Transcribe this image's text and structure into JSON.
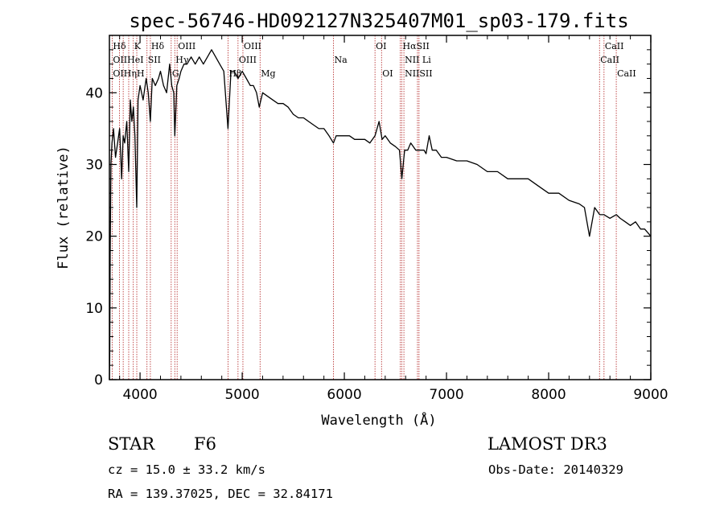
{
  "chart_data": {
    "type": "line",
    "title": "spec-56746-HD092127N325407M01_sp03-179.fits",
    "xlabel": "Wavelength (Å)",
    "ylabel": "Flux (relative)",
    "xlim": [
      3700,
      9000
    ],
    "ylim": [
      0,
      48
    ],
    "xticks": [
      4000,
      5000,
      6000,
      7000,
      8000,
      9000
    ],
    "yticks": [
      0,
      10,
      20,
      30,
      40
    ],
    "series": [
      {
        "name": "flux",
        "x": [
          3700,
          3703,
          3708,
          3715,
          3725,
          3740,
          3760,
          3780,
          3800,
          3820,
          3835,
          3850,
          3870,
          3889,
          3905,
          3920,
          3935,
          3950,
          3968,
          3980,
          4000,
          4030,
          4060,
          4080,
          4101,
          4120,
          4150,
          4180,
          4200,
          4230,
          4260,
          4290,
          4310,
          4330,
          4340,
          4360,
          4383,
          4400,
          4430,
          4460,
          4500,
          4540,
          4580,
          4620,
          4660,
          4700,
          4740,
          4780,
          4820,
          4861,
          4890,
          4920,
          4960,
          5000,
          5040,
          5080,
          5110,
          5140,
          5167,
          5183,
          5200,
          5250,
          5300,
          5350,
          5400,
          5450,
          5500,
          5550,
          5600,
          5650,
          5700,
          5750,
          5800,
          5850,
          5893,
          5920,
          5960,
          6000,
          6050,
          6100,
          6150,
          6200,
          6250,
          6300,
          6340,
          6370,
          6400,
          6450,
          6500,
          6540,
          6563,
          6590,
          6620,
          6650,
          6700,
          6740,
          6780,
          6800,
          6830,
          6860,
          6900,
          6950,
          7000,
          7100,
          7200,
          7300,
          7400,
          7500,
          7600,
          7700,
          7800,
          7900,
          8000,
          8100,
          8200,
          8300,
          8350,
          8400,
          8450,
          8500,
          8542,
          8600,
          8662,
          8700,
          8750,
          8800,
          8850,
          8900,
          8940,
          8970,
          9000
        ],
        "y": [
          0,
          3,
          18,
          30,
          33,
          35,
          31,
          33,
          35,
          28,
          34,
          33,
          36,
          29,
          39,
          36,
          38,
          34,
          24,
          39,
          41,
          39,
          42,
          40,
          36,
          42,
          41,
          42,
          43,
          41,
          40,
          44,
          41,
          40,
          34,
          41,
          42,
          43,
          44,
          44,
          45,
          44,
          45,
          44,
          45,
          46,
          45,
          44,
          43,
          35,
          43,
          43,
          42,
          43,
          42,
          41,
          41,
          40,
          38,
          39,
          40,
          39.5,
          39,
          38.5,
          38.5,
          38,
          37,
          36.5,
          36.5,
          36,
          35.5,
          35,
          35,
          34,
          33,
          34,
          34,
          34,
          34,
          33.5,
          33.5,
          33.5,
          33,
          34,
          36,
          33.5,
          34,
          33,
          32.5,
          32,
          28,
          32,
          32,
          33,
          32,
          32,
          32,
          31.5,
          34,
          32,
          32,
          31,
          31,
          30.5,
          30.5,
          30,
          29,
          29,
          28,
          28,
          28,
          27,
          26,
          26,
          25,
          24.5,
          24,
          20,
          24,
          23,
          23,
          22.5,
          23,
          22.5,
          22,
          21.5,
          22,
          21,
          21,
          20.5,
          20
        ]
      }
    ],
    "spectral_lines": [
      {
        "label": "Hδ",
        "x": 3727,
        "row": 1
      },
      {
        "label": "K",
        "x": 3934,
        "row": 1
      },
      {
        "label": "Hδ",
        "x": 4101,
        "row": 1
      },
      {
        "label": "OIII",
        "x": 4363,
        "row": 1
      },
      {
        "label": "OIII",
        "x": 5007,
        "row": 1
      },
      {
        "label": "OI",
        "x": 6300,
        "row": 1
      },
      {
        "label": "HαSII",
        "x": 6563,
        "row": 1
      },
      {
        "label": "CaII",
        "x": 8542,
        "row": 1
      },
      {
        "label": "OIIHeI",
        "x": 3727,
        "row": 2
      },
      {
        "label": "SII",
        "x": 4068,
        "row": 2
      },
      {
        "label": "Hγ",
        "x": 4340,
        "row": 2
      },
      {
        "label": "OIII",
        "x": 4959,
        "row": 2
      },
      {
        "label": "Na",
        "x": 5893,
        "row": 2
      },
      {
        "label": "NII Li",
        "x": 6583,
        "row": 2
      },
      {
        "label": "CaII",
        "x": 8498,
        "row": 2
      },
      {
        "label": "OIHηH",
        "x": 3727,
        "row": 3
      },
      {
        "label": "G",
        "x": 4305,
        "row": 3
      },
      {
        "label": "Hβ",
        "x": 4861,
        "row": 3
      },
      {
        "label": "Mg",
        "x": 5175,
        "row": 3
      },
      {
        "label": "OI",
        "x": 6364,
        "row": 3
      },
      {
        "label": "NIISII",
        "x": 6583,
        "row": 3
      },
      {
        "label": "CaII",
        "x": 8662,
        "row": 3
      }
    ],
    "marker_line_x": [
      3727,
      3798,
      3835,
      3889,
      3934,
      3968,
      4068,
      4101,
      4305,
      4340,
      4363,
      4861,
      4959,
      5007,
      5175,
      5893,
      6300,
      6364,
      6548,
      6563,
      6583,
      6716,
      6731,
      8498,
      8542,
      8662
    ]
  },
  "info": {
    "object_type": "STAR",
    "subclass": "F6",
    "survey": "LAMOST DR3",
    "cz": "cz = 15.0 ± 33.2 km/s",
    "obs_date": "Obs-Date: 20140329",
    "coords": "RA = 139.37025, DEC =  32.84171"
  },
  "colors": {
    "line": "#000000",
    "marker": "#b22222",
    "background": "#ffffff"
  }
}
